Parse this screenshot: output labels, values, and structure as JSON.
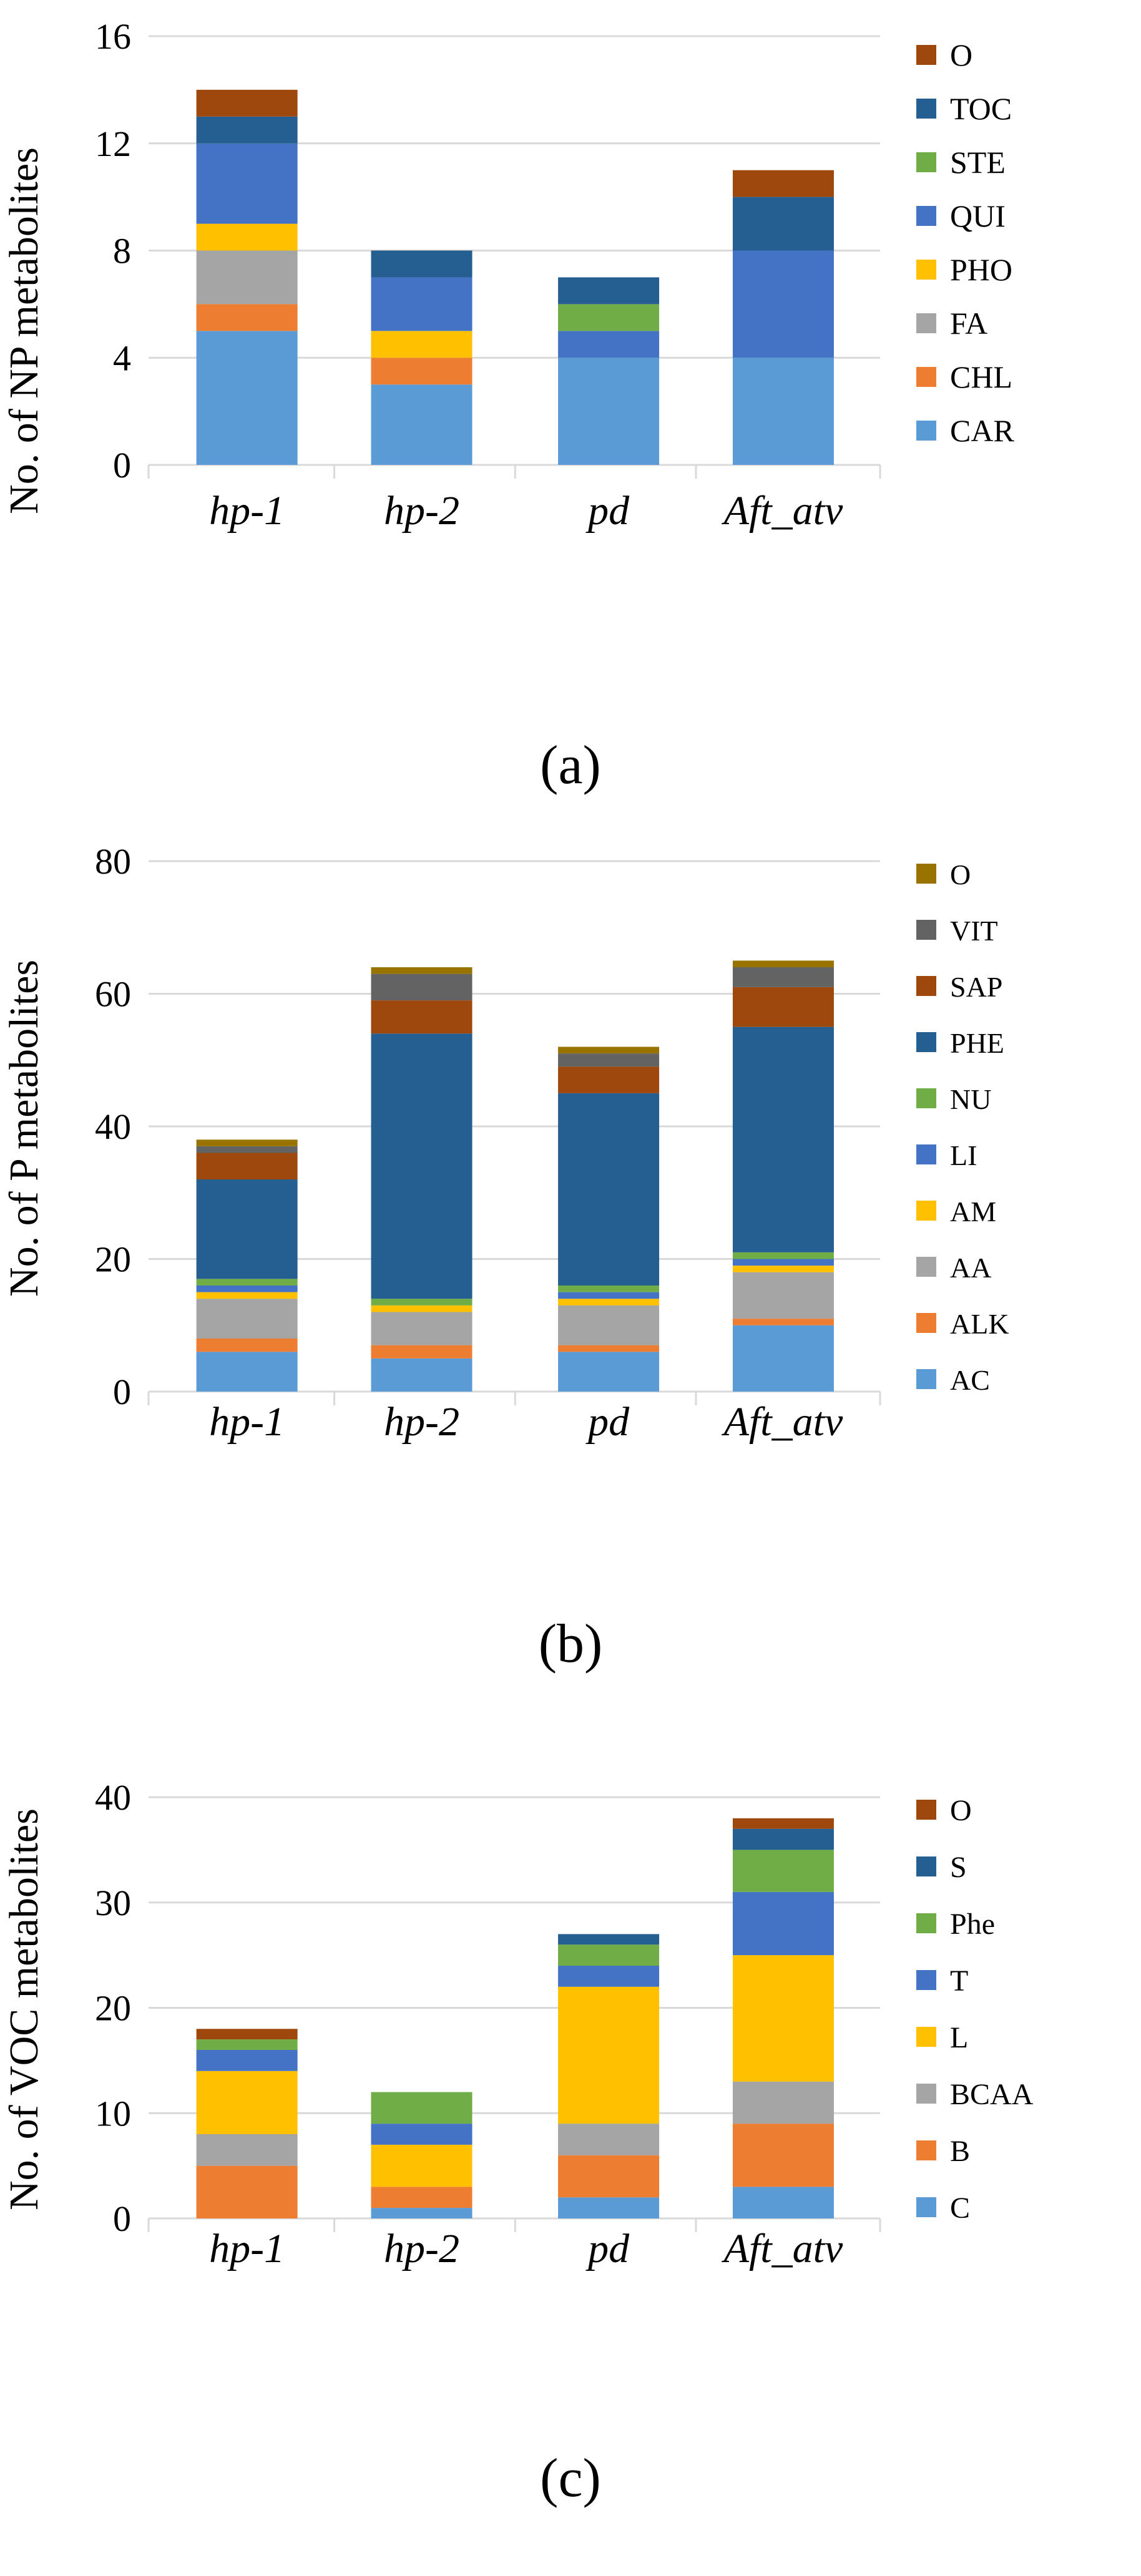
{
  "colors": {
    "CAR": "#5b9bd5",
    "CHL": "#ed7d31",
    "FA": "#a5a5a5",
    "PHO": "#ffc000",
    "QUI": "#4472c4",
    "STE": "#70ad47",
    "TOC": "#255e91",
    "O": "#9e480e",
    "VIT": "#636363",
    "O_P": "#997300",
    "axis": "#d9d9d9",
    "text": "#000000"
  },
  "chart_data": [
    {
      "type": "bar",
      "stacked": true,
      "panel_label": "(a)",
      "ylabel": "No. of NP metabolites",
      "ylim": [
        0,
        16
      ],
      "yticks": [
        "0",
        "4",
        "8",
        "12",
        "16"
      ],
      "ytick_values": [
        0,
        4,
        8,
        12,
        16
      ],
      "categories": [
        "hp-1",
        "hp-2",
        "pd",
        "Aft_atv"
      ],
      "legend_order": [
        "O",
        "TOC",
        "STE",
        "QUI",
        "PHO",
        "FA",
        "CHL",
        "CAR"
      ],
      "series": [
        {
          "name": "CAR",
          "color": "#5b9bd5",
          "values": [
            5,
            3,
            4,
            4
          ]
        },
        {
          "name": "CHL",
          "color": "#ed7d31",
          "values": [
            1,
            1,
            0,
            0
          ]
        },
        {
          "name": "FA",
          "color": "#a5a5a5",
          "values": [
            2,
            0,
            0,
            0
          ]
        },
        {
          "name": "PHO",
          "color": "#ffc000",
          "values": [
            1,
            1,
            0,
            0
          ]
        },
        {
          "name": "QUI",
          "color": "#4472c4",
          "values": [
            3,
            2,
            1,
            4
          ]
        },
        {
          "name": "STE",
          "color": "#70ad47",
          "values": [
            0,
            0,
            1,
            0
          ]
        },
        {
          "name": "TOC",
          "color": "#255e91",
          "values": [
            1,
            1,
            1,
            2
          ]
        },
        {
          "name": "O",
          "color": "#9e480e",
          "values": [
            1,
            0,
            0,
            1
          ]
        }
      ]
    },
    {
      "type": "bar",
      "stacked": true,
      "panel_label": "(b)",
      "ylabel": "No. of P metabolites",
      "ylim": [
        0,
        80
      ],
      "yticks": [
        "0",
        "20",
        "40",
        "60",
        "80"
      ],
      "ytick_values": [
        0,
        20,
        40,
        60,
        80
      ],
      "categories": [
        "hp-1",
        "hp-2",
        "pd",
        "Aft_atv"
      ],
      "legend_order": [
        "O",
        "VIT",
        "SAP",
        "PHE",
        "NU",
        "LI",
        "AM",
        "AA",
        "ALK",
        "AC"
      ],
      "series": [
        {
          "name": "AC",
          "color": "#5b9bd5",
          "values": [
            6,
            5,
            6,
            10
          ]
        },
        {
          "name": "ALK",
          "color": "#ed7d31",
          "values": [
            2,
            2,
            1,
            1
          ]
        },
        {
          "name": "AA",
          "color": "#a5a5a5",
          "values": [
            6,
            5,
            6,
            7
          ]
        },
        {
          "name": "AM",
          "color": "#ffc000",
          "values": [
            1,
            1,
            1,
            1
          ]
        },
        {
          "name": "LI",
          "color": "#4472c4",
          "values": [
            1,
            0,
            1,
            1
          ]
        },
        {
          "name": "NU",
          "color": "#70ad47",
          "values": [
            1,
            1,
            1,
            1
          ]
        },
        {
          "name": "PHE",
          "color": "#255e91",
          "values": [
            15,
            40,
            29,
            34
          ]
        },
        {
          "name": "SAP",
          "color": "#9e480e",
          "values": [
            4,
            5,
            4,
            6
          ]
        },
        {
          "name": "VIT",
          "color": "#636363",
          "values": [
            1,
            4,
            2,
            3
          ]
        },
        {
          "name": "O",
          "color": "#997300",
          "values": [
            1,
            1,
            1,
            1
          ]
        }
      ]
    },
    {
      "type": "bar",
      "stacked": true,
      "panel_label": "(c)",
      "ylabel": "No. of VOC metabolites",
      "ylim": [
        0,
        40
      ],
      "yticks": [
        "0",
        "10",
        "20",
        "30",
        "40"
      ],
      "ytick_values": [
        0,
        10,
        20,
        30,
        40
      ],
      "categories": [
        "hp-1",
        "hp-2",
        "pd",
        "Aft_atv"
      ],
      "legend_order": [
        "O",
        "S",
        "Phe",
        "T",
        "L",
        "BCAA",
        "B",
        "C"
      ],
      "series": [
        {
          "name": "C",
          "color": "#5b9bd5",
          "values": [
            0,
            1,
            2,
            3
          ]
        },
        {
          "name": "B",
          "color": "#ed7d31",
          "values": [
            5,
            2,
            4,
            6
          ]
        },
        {
          "name": "BCAA",
          "color": "#a5a5a5",
          "values": [
            3,
            0,
            3,
            4
          ]
        },
        {
          "name": "L",
          "color": "#ffc000",
          "values": [
            6,
            4,
            13,
            12
          ]
        },
        {
          "name": "T",
          "color": "#4472c4",
          "values": [
            2,
            2,
            2,
            6
          ]
        },
        {
          "name": "Phe",
          "color": "#70ad47",
          "values": [
            1,
            3,
            2,
            4
          ]
        },
        {
          "name": "S",
          "color": "#255e91",
          "values": [
            0,
            0,
            1,
            2
          ]
        },
        {
          "name": "O",
          "color": "#9e480e",
          "values": [
            1,
            0,
            0,
            1
          ]
        }
      ]
    }
  ]
}
